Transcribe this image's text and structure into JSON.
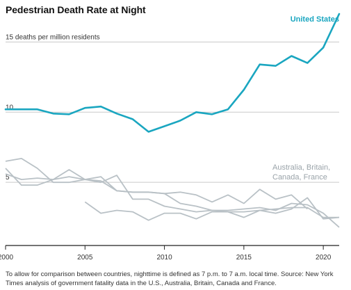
{
  "title": "Pedestrian Death Rate at Night",
  "note": "To allow for comparison between countries, nighttime is defined as 7 p.m. to 7 a.m. local time. Source: New York Times analysis of government fatality data in the U.S., Australia, Britain, Canada and France.",
  "colors": {
    "us": "#1aa6c0",
    "others": "#b9c1c6",
    "grid": "#c9c9c9",
    "axis": "#222222"
  },
  "chart_data": {
    "type": "line",
    "title": "Pedestrian Death Rate at Night",
    "ylabel": "15 deaths per million residents",
    "xlim": [
      2000,
      2021
    ],
    "ylim": [
      0.5,
      17
    ],
    "xticks": [
      2000,
      2005,
      2010,
      2015,
      2020
    ],
    "yticks": [
      {
        "value": 15,
        "label": "15 deaths per million residents"
      },
      {
        "value": 10,
        "label": "10"
      },
      {
        "value": 5,
        "label": "5"
      }
    ],
    "grid": true,
    "x": [
      2000,
      2001,
      2002,
      2003,
      2004,
      2005,
      2006,
      2007,
      2008,
      2009,
      2010,
      2011,
      2012,
      2013,
      2014,
      2015,
      2016,
      2017,
      2018,
      2019,
      2020,
      2021
    ],
    "series": [
      {
        "name": "United States",
        "highlight": true,
        "values": [
          10.2,
          10.2,
          10.2,
          9.9,
          9.85,
          10.3,
          10.4,
          9.9,
          9.5,
          8.6,
          9.0,
          9.4,
          10.0,
          9.85,
          10.2,
          11.6,
          13.4,
          13.3,
          14.0,
          13.5,
          14.6,
          17.0
        ]
      },
      {
        "name": "",
        "values": [
          6.5,
          6.7,
          6.0,
          5.0,
          5.0,
          5.2,
          5.1,
          4.4,
          4.3,
          4.3,
          4.2,
          4.3,
          4.1,
          3.6,
          4.1,
          3.5,
          4.5,
          3.8,
          4.1,
          3.1,
          null,
          null
        ]
      },
      {
        "name": "",
        "values": [
          5.6,
          5.2,
          5.3,
          5.2,
          5.4,
          5.2,
          5.4,
          4.4,
          4.3,
          4.3,
          4.2,
          3.5,
          3.3,
          3.0,
          3.0,
          3.1,
          3.2,
          3.0,
          3.5,
          3.4,
          2.8,
          1.8
        ]
      },
      {
        "name": "",
        "values": [
          6.0,
          4.8,
          4.8,
          5.2,
          5.9,
          5.2,
          5.0,
          5.5,
          3.8,
          3.8,
          3.3,
          3.1,
          2.9,
          3.0,
          2.9,
          2.9,
          3.0,
          3.1,
          3.2,
          3.2,
          2.5,
          2.5
        ]
      },
      {
        "name": "",
        "values": [
          null,
          null,
          null,
          null,
          null,
          3.6,
          2.8,
          3.0,
          2.9,
          2.3,
          2.8,
          2.8,
          2.4,
          2.9,
          2.9,
          2.5,
          3.0,
          2.8,
          3.1,
          3.9,
          2.4,
          2.5
        ]
      }
    ],
    "annotations": {
      "us_label": "United States",
      "others_label": [
        "Australia, Britain,",
        "Canada, France"
      ]
    }
  }
}
